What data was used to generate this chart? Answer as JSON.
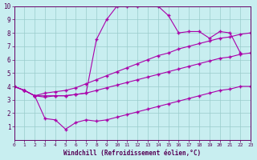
{
  "xlabel": "Windchill (Refroidissement éolien,°C)",
  "bg_color": "#c8eef0",
  "line_color": "#aa00aa",
  "grid_color": "#99cccc",
  "xlim": [
    0,
    23
  ],
  "ylim": [
    0,
    10
  ],
  "xticks": [
    0,
    1,
    2,
    3,
    4,
    5,
    6,
    7,
    8,
    9,
    10,
    11,
    12,
    13,
    14,
    15,
    16,
    17,
    18,
    19,
    20,
    21,
    22,
    23
  ],
  "yticks": [
    1,
    2,
    3,
    4,
    5,
    6,
    7,
    8,
    9,
    10
  ],
  "lines": [
    {
      "x": [
        0,
        1,
        2,
        3,
        4,
        5,
        6,
        7,
        8,
        9,
        10,
        11,
        12,
        13,
        14,
        15,
        16,
        17,
        18,
        19,
        20,
        21,
        22
      ],
      "y": [
        4.0,
        3.7,
        3.3,
        3.2,
        3.3,
        3.3,
        3.4,
        3.5,
        7.5,
        9.0,
        10.0,
        10.0,
        10.0,
        10.5,
        10.0,
        9.3,
        8.0,
        8.1,
        8.1,
        7.6,
        8.1,
        8.0,
        6.5
      ]
    },
    {
      "x": [
        0,
        1,
        2,
        3,
        4,
        5,
        6,
        7,
        8,
        9,
        10,
        11,
        12,
        13,
        14,
        15,
        16,
        17,
        18,
        19,
        20,
        21,
        22,
        23
      ],
      "y": [
        4.0,
        3.7,
        3.3,
        3.5,
        3.6,
        3.7,
        3.9,
        4.2,
        4.5,
        4.8,
        5.1,
        5.4,
        5.7,
        6.0,
        6.3,
        6.5,
        6.8,
        7.0,
        7.2,
        7.4,
        7.6,
        7.7,
        7.9,
        8.0
      ]
    },
    {
      "x": [
        0,
        1,
        2,
        3,
        4,
        5,
        6,
        7,
        8,
        9,
        10,
        11,
        12,
        13,
        14,
        15,
        16,
        17,
        18,
        19,
        20,
        21,
        22,
        23
      ],
      "y": [
        4.0,
        3.7,
        3.3,
        3.3,
        3.3,
        3.3,
        3.4,
        3.5,
        3.7,
        3.9,
        4.1,
        4.3,
        4.5,
        4.7,
        4.9,
        5.1,
        5.3,
        5.5,
        5.7,
        5.9,
        6.1,
        6.2,
        6.4,
        6.5
      ]
    },
    {
      "x": [
        0,
        1,
        2,
        3,
        4,
        5,
        6,
        7,
        8,
        9,
        10,
        11,
        12,
        13,
        14,
        15,
        16,
        17,
        18,
        19,
        20,
        21,
        22,
        23
      ],
      "y": [
        4.0,
        3.7,
        3.3,
        1.6,
        1.5,
        0.8,
        1.3,
        1.5,
        1.4,
        1.5,
        1.7,
        1.9,
        2.1,
        2.3,
        2.5,
        2.7,
        2.9,
        3.1,
        3.3,
        3.5,
        3.7,
        3.8,
        4.0,
        4.0
      ]
    }
  ]
}
